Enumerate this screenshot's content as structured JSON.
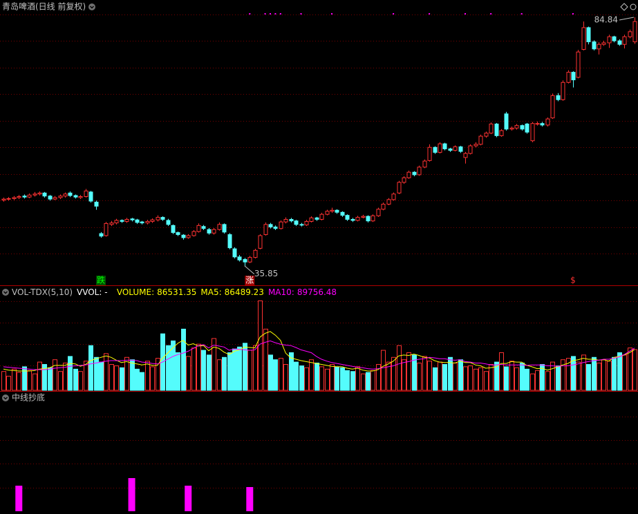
{
  "chart_data": [
    {
      "type": "candlestick",
      "title": "青岛啤酒(日线 前复权)",
      "ylim": [
        32,
        86.2
      ],
      "up_color": "#ff3232",
      "down_color": "#54fcfc",
      "ohlc": [
        [
          48.8,
          49.3,
          48.5,
          49.0
        ],
        [
          49.0,
          49.4,
          48.7,
          49.1
        ],
        [
          49.1,
          49.6,
          48.8,
          49.3
        ],
        [
          49.3,
          49.8,
          49.0,
          49.5
        ],
        [
          49.6,
          49.9,
          49.1,
          49.4
        ],
        [
          49.4,
          50.1,
          49.2,
          49.8
        ],
        [
          49.8,
          50.4,
          49.5,
          50.0
        ],
        [
          50.0,
          50.5,
          49.7,
          50.2
        ],
        [
          50.2,
          50.4,
          49.3,
          49.6
        ],
        [
          49.6,
          49.8,
          48.7,
          49.0
        ],
        [
          49.0,
          49.6,
          48.8,
          49.3
        ],
        [
          49.3,
          49.9,
          49.0,
          49.6
        ],
        [
          49.6,
          50.3,
          49.3,
          50.0
        ],
        [
          50.2,
          50.5,
          49.4,
          49.7
        ],
        [
          49.7,
          49.9,
          49.1,
          49.4
        ],
        [
          49.3,
          49.8,
          49.0,
          49.5
        ],
        [
          49.5,
          51.0,
          49.3,
          50.6
        ],
        [
          50.4,
          50.6,
          48.3,
          48.6
        ],
        [
          48.4,
          48.7,
          46.9,
          47.6
        ],
        [
          42.2,
          42.5,
          41.4,
          41.7
        ],
        [
          41.8,
          44.5,
          41.6,
          44.2
        ],
        [
          44.0,
          44.7,
          43.7,
          44.3
        ],
        [
          44.3,
          45.1,
          44.0,
          44.8
        ],
        [
          44.8,
          45.0,
          44.3,
          44.6
        ],
        [
          44.6,
          45.3,
          44.3,
          45.0
        ],
        [
          45.1,
          45.3,
          44.6,
          44.9
        ],
        [
          44.9,
          45.1,
          44.1,
          44.4
        ],
        [
          44.5,
          44.7,
          44.0,
          44.3
        ],
        [
          44.3,
          44.9,
          44.0,
          44.6
        ],
        [
          44.6,
          45.2,
          44.3,
          44.9
        ],
        [
          44.9,
          45.8,
          44.6,
          45.4
        ],
        [
          45.4,
          45.6,
          44.7,
          45.0
        ],
        [
          44.8,
          45.1,
          43.7,
          44.0
        ],
        [
          43.8,
          44.0,
          42.1,
          42.4
        ],
        [
          42.4,
          42.6,
          41.7,
          42.0
        ],
        [
          41.9,
          42.1,
          41.0,
          41.4
        ],
        [
          41.4,
          42.1,
          41.2,
          41.8
        ],
        [
          41.8,
          42.9,
          41.6,
          42.6
        ],
        [
          42.6,
          44.2,
          42.4,
          43.8
        ],
        [
          43.6,
          43.9,
          42.9,
          43.2
        ],
        [
          43.0,
          43.3,
          42.0,
          42.3
        ],
        [
          42.3,
          43.3,
          42.0,
          43.0
        ],
        [
          43.0,
          44.4,
          42.8,
          44.0
        ],
        [
          44.0,
          44.2,
          42.2,
          42.5
        ],
        [
          42.0,
          42.3,
          39.1,
          39.4
        ],
        [
          39.2,
          39.5,
          37.3,
          37.6
        ],
        [
          37.6,
          38.0,
          36.7,
          37.0
        ],
        [
          37.1,
          37.4,
          35.85,
          36.6
        ],
        [
          36.6,
          37.8,
          36.4,
          37.5
        ],
        [
          37.5,
          39.2,
          37.3,
          38.9
        ],
        [
          39.3,
          42.1,
          39.1,
          41.8
        ],
        [
          42.0,
          44.4,
          41.8,
          44.0
        ],
        [
          44.0,
          44.3,
          43.2,
          43.5
        ],
        [
          43.5,
          43.8,
          42.9,
          43.2
        ],
        [
          43.2,
          44.8,
          43.0,
          44.5
        ],
        [
          44.5,
          45.4,
          44.2,
          45.0
        ],
        [
          45.0,
          45.3,
          44.4,
          44.7
        ],
        [
          44.7,
          44.9,
          43.7,
          44.0
        ],
        [
          44.0,
          44.3,
          43.6,
          43.9
        ],
        [
          43.9,
          44.9,
          43.7,
          44.6
        ],
        [
          44.6,
          45.6,
          44.4,
          45.3
        ],
        [
          45.3,
          45.5,
          44.7,
          45.0
        ],
        [
          45.0,
          46.3,
          44.8,
          46.0
        ],
        [
          46.0,
          46.9,
          45.8,
          46.6
        ],
        [
          46.6,
          47.3,
          46.3,
          46.8
        ],
        [
          46.8,
          47.0,
          46.1,
          46.4
        ],
        [
          46.4,
          46.6,
          45.5,
          45.8
        ],
        [
          45.8,
          46.0,
          44.7,
          45.0
        ],
        [
          45.0,
          45.3,
          44.5,
          44.8
        ],
        [
          44.8,
          45.7,
          44.6,
          45.4
        ],
        [
          45.4,
          45.9,
          45.2,
          45.6
        ],
        [
          45.6,
          45.8,
          44.4,
          44.7
        ],
        [
          44.7,
          46.0,
          44.5,
          45.7
        ],
        [
          45.7,
          47.3,
          45.5,
          47.0
        ],
        [
          47.0,
          48.3,
          46.8,
          48.0
        ],
        [
          48.0,
          49.2,
          47.8,
          48.9
        ],
        [
          48.9,
          50.3,
          48.7,
          50.0
        ],
        [
          50.2,
          52.6,
          50.0,
          52.3
        ],
        [
          52.3,
          53.5,
          52.0,
          53.2
        ],
        [
          53.2,
          54.6,
          53.0,
          54.3
        ],
        [
          54.3,
          54.5,
          53.5,
          53.8
        ],
        [
          53.8,
          55.6,
          53.6,
          55.3
        ],
        [
          55.3,
          56.8,
          55.1,
          56.5
        ],
        [
          56.6,
          59.8,
          56.4,
          59.2
        ],
        [
          59.2,
          59.4,
          57.9,
          58.2
        ],
        [
          58.2,
          60.2,
          58.0,
          59.9
        ],
        [
          59.9,
          60.1,
          58.6,
          58.9
        ],
        [
          58.9,
          59.1,
          58.3,
          58.6
        ],
        [
          58.6,
          59.6,
          58.4,
          59.3
        ],
        [
          59.3,
          59.5,
          58.1,
          58.4
        ],
        [
          57.2,
          58.3,
          56.0,
          58.0
        ],
        [
          58.0,
          59.8,
          57.8,
          59.5
        ],
        [
          59.5,
          60.2,
          59.2,
          59.8
        ],
        [
          59.8,
          61.7,
          59.6,
          61.4
        ],
        [
          61.4,
          62.3,
          61.1,
          62.0
        ],
        [
          62.0,
          64.1,
          61.8,
          63.8
        ],
        [
          63.8,
          64.0,
          61.2,
          61.5
        ],
        [
          61.5,
          62.8,
          61.3,
          62.5
        ],
        [
          65.8,
          66.2,
          62.5,
          62.8
        ],
        [
          62.8,
          63.3,
          62.5,
          63.0
        ],
        [
          63.0,
          63.8,
          62.7,
          63.5
        ],
        [
          63.5,
          63.7,
          62.5,
          62.8
        ],
        [
          63.8,
          64.0,
          61.9,
          62.2
        ],
        [
          60.5,
          64.2,
          60.2,
          63.9
        ],
        [
          63.9,
          64.3,
          63.5,
          63.9
        ],
        [
          63.9,
          64.2,
          63.3,
          63.6
        ],
        [
          63.6,
          65.1,
          63.3,
          64.8
        ],
        [
          65.0,
          69.8,
          64.8,
          69.4
        ],
        [
          69.4,
          69.9,
          68.3,
          68.6
        ],
        [
          68.6,
          72.4,
          68.4,
          72.0
        ],
        [
          72.0,
          74.4,
          71.8,
          74.0
        ],
        [
          74.0,
          74.2,
          71.0,
          72.5
        ],
        [
          73.0,
          78.4,
          72.8,
          78.0
        ],
        [
          78.5,
          84.0,
          78.3,
          82.8
        ],
        [
          82.8,
          83.0,
          79.5,
          80.0
        ],
        [
          80.0,
          80.3,
          78.3,
          78.6
        ],
        [
          78.6,
          79.9,
          77.5,
          79.5
        ],
        [
          79.5,
          80.2,
          79.2,
          79.8
        ],
        [
          79.8,
          81.4,
          78.8,
          81.0
        ],
        [
          81.0,
          81.2,
          79.9,
          80.2
        ],
        [
          80.2,
          80.5,
          79.2,
          79.5
        ],
        [
          79.5,
          81.4,
          78.7,
          81.0
        ],
        [
          81.0,
          82.4,
          80.7,
          82.0
        ],
        [
          80.0,
          84.84,
          79.6,
          84.0
        ]
      ],
      "markers": {
        "indices": [
          48,
          51,
          52,
          53,
          54,
          58,
          64,
          76,
          83,
          90,
          95,
          101,
          111
        ],
        "color": "#ff00ff"
      },
      "annotations": [
        {
          "text": "跌",
          "index": 19,
          "color": "#00ff00",
          "background": "#005000"
        },
        {
          "text": "涨",
          "index": 48,
          "color": "#ffffff",
          "background": "#a00000"
        },
        {
          "text": "$",
          "index": 111,
          "color": "#ff3232"
        }
      ]
    },
    {
      "type": "volume",
      "title": "VOL-TDX(5,10)",
      "subtitle": "VVOL: -",
      "ylim": [
        0,
        220000
      ],
      "series": [
        {
          "name": "VOLUME:",
          "color": "#ffff00",
          "values": [
            40000,
            30000,
            45000,
            38000,
            50000,
            42000,
            35000,
            60000,
            55000,
            48000,
            65000,
            40000,
            58000,
            72000,
            45000,
            40000,
            62000,
            95000,
            70000,
            60000,
            78000,
            55000,
            52000,
            48000,
            70000,
            65000,
            45000,
            38000,
            62000,
            50000,
            68000,
            120000,
            95000,
            105000,
            80000,
            130000,
            72000,
            90000,
            98000,
            85000,
            75000,
            110000,
            65000,
            70000,
            80000,
            88000,
            92000,
            100000,
            85000,
            95000,
            190000,
            130000,
            75000,
            65000,
            68000,
            55000,
            80000,
            60000,
            52000,
            48000,
            65000,
            58000,
            50000,
            45000,
            55000,
            50000,
            48000,
            42000,
            40000,
            50000,
            35000,
            38000,
            42000,
            55000,
            85000,
            60000,
            70000,
            95000,
            65000,
            80000,
            75000,
            58000,
            72000,
            62000,
            48000,
            60000,
            55000,
            70000,
            58000,
            65000,
            50000,
            52000,
            45000,
            48000,
            40000,
            55000,
            60000,
            80000,
            50000,
            62000,
            48000,
            58000,
            45000,
            35000,
            42000,
            55000,
            40000,
            60000,
            52000,
            65000,
            68000,
            72000,
            60000,
            75000,
            55000,
            70000,
            58000,
            65000,
            62000,
            70000,
            80000,
            75000,
            90000,
            86531.35
          ]
        },
        {
          "name": "MA5:",
          "color": "#ffff00",
          "values": [
            45000,
            43000,
            42000,
            41000,
            41000,
            41000,
            42000,
            45000,
            46000,
            48000,
            53000,
            53000,
            53000,
            57000,
            56000,
            51000,
            55000,
            63000,
            67000,
            70000,
            73000,
            70000,
            64000,
            59000,
            61000,
            58000,
            56000,
            54000,
            56000,
            53000,
            53000,
            68000,
            79000,
            90000,
            100000,
            106000,
            96000,
            99000,
            94000,
            95000,
            84000,
            92000,
            89000,
            81000,
            76000,
            83000,
            86000,
            92000,
            91000,
            90000,
            113000,
            121000,
            125000,
            117000,
            106000,
            79000,
            69000,
            66000,
            63000,
            61000,
            59000,
            57000,
            55000,
            53000,
            51000,
            50000,
            50000,
            47000,
            45000,
            47000,
            43000,
            41000,
            41000,
            44000,
            51000,
            56000,
            62000,
            73000,
            75000,
            74000,
            77000,
            74000,
            70000,
            69000,
            63000,
            60000,
            59000,
            59000,
            58000,
            62000,
            59000,
            59000,
            54000,
            52000,
            47000,
            48000,
            50000,
            57000,
            57000,
            61000,
            60000,
            60000,
            53000,
            50000,
            46000,
            47000,
            43000,
            46000,
            50000,
            54000,
            57000,
            63000,
            65000,
            68000,
            66000,
            66000,
            64000,
            65000,
            62000,
            70000,
            72000,
            75000,
            80000,
            86489.23
          ]
        },
        {
          "name": "MA10:",
          "color": "#ff00ff",
          "values": [
            50000,
            49000,
            48000,
            47000,
            46000,
            45000,
            44000,
            44000,
            44000,
            45000,
            47000,
            48000,
            49000,
            51000,
            52000,
            53000,
            54000,
            56000,
            58000,
            60000,
            62000,
            63000,
            63000,
            63000,
            64000,
            64000,
            63000,
            60000,
            59000,
            57000,
            56000,
            60000,
            66000,
            72000,
            76000,
            79000,
            83000,
            89000,
            95000,
            97000,
            90000,
            96000,
            94000,
            92000,
            85000,
            88000,
            87000,
            86000,
            85000,
            86000,
            98000,
            102000,
            105000,
            101000,
            98000,
            96000,
            95000,
            91000,
            86000,
            83000,
            80000,
            72000,
            66000,
            62000,
            59000,
            57000,
            55000,
            53000,
            51000,
            49000,
            48000,
            46000,
            45000,
            46000,
            48000,
            50000,
            52000,
            56000,
            59000,
            61000,
            64000,
            66000,
            67000,
            70000,
            69000,
            67000,
            67000,
            65000,
            64000,
            65000,
            61000,
            60000,
            58000,
            58000,
            56000,
            54000,
            54000,
            55000,
            54000,
            54000,
            54000,
            54000,
            53000,
            54000,
            54000,
            54000,
            52000,
            52000,
            51000,
            52000,
            52000,
            54000,
            56000,
            59000,
            61000,
            63000,
            64000,
            66000,
            66000,
            68000,
            71000,
            76000,
            83000,
            89756.48
          ]
        }
      ]
    },
    {
      "type": "signal",
      "title": "中线抄底",
      "ylim": [
        0,
        150
      ],
      "color": "#ff00ff",
      "indices": [
        3,
        25,
        36,
        48
      ],
      "values": [
        37,
        48,
        37,
        35
      ]
    }
  ]
}
